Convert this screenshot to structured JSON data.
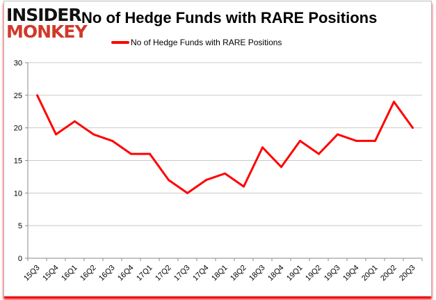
{
  "logo": {
    "line1": "INSIDER",
    "line2": "MONKEY"
  },
  "chart_data": {
    "type": "line",
    "title": "No of Hedge Funds with RARE Positions",
    "xlabel": "",
    "ylabel": "",
    "categories": [
      "15Q3",
      "15Q4",
      "16Q1",
      "16Q2",
      "16Q3",
      "16Q4",
      "17Q1",
      "17Q2",
      "17Q3",
      "17Q4",
      "18Q1",
      "18Q2",
      "18Q3",
      "18Q4",
      "19Q1",
      "19Q2",
      "19Q3",
      "19Q4",
      "20Q1",
      "20Q2",
      "20Q3"
    ],
    "series": [
      {
        "name": "No of Hedge Funds with RARE Positions",
        "color": "#ff0000",
        "values": [
          25,
          19,
          21,
          19,
          18,
          16,
          16,
          12,
          10,
          12,
          13,
          11,
          17,
          14,
          18,
          16,
          19,
          18,
          18,
          24,
          20
        ]
      }
    ],
    "ylim": [
      0,
      30
    ],
    "yticks": [
      0,
      5,
      10,
      15,
      20,
      25,
      30
    ],
    "grid": true,
    "legend": "top"
  }
}
